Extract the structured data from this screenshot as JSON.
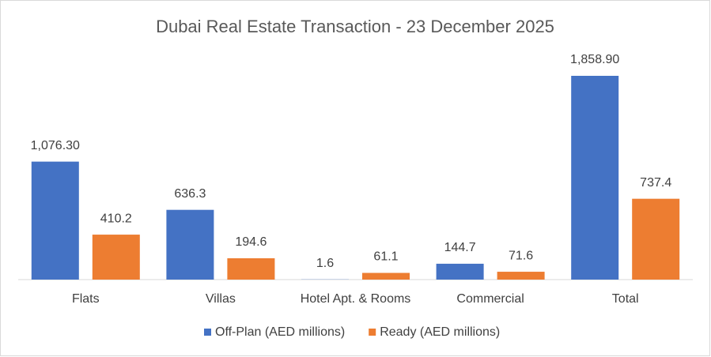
{
  "chart_data": {
    "type": "bar",
    "title": "Dubai Real Estate Transaction - 23 December 2025",
    "categories": [
      "Flats",
      "Villas",
      "Hotel Apt. & Rooms",
      "Commercial",
      "Total"
    ],
    "series": [
      {
        "name": "Off-Plan (AED millions)",
        "color": "#4472c4",
        "values": [
          1076.3,
          636.3,
          1.6,
          144.7,
          1858.9
        ],
        "value_labels": [
          "1,076.30",
          "636.3",
          "1.6",
          "144.7",
          "1,858.90"
        ]
      },
      {
        "name": "Ready (AED millions)",
        "color": "#ed7d31",
        "values": [
          410.2,
          194.6,
          61.1,
          71.6,
          737.4
        ]
      }
    ],
    "legend": "bottom"
  }
}
